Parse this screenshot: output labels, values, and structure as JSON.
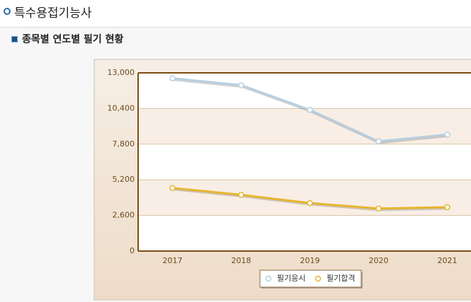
{
  "header": {
    "title": "특수용접기능사",
    "subtitle": "종목별 연도별 필기 현황"
  },
  "chart_data": {
    "type": "line",
    "categories": [
      "2017",
      "2018",
      "2019",
      "2020",
      "2021"
    ],
    "series": [
      {
        "name": "필기응시",
        "color": "#b7cfe2",
        "values": [
          12600,
          12100,
          10300,
          8000,
          8500
        ]
      },
      {
        "name": "필기합격",
        "color": "#e6b52c",
        "values": [
          4600,
          4100,
          3500,
          3100,
          3200
        ]
      }
    ],
    "ylim": [
      0,
      13000
    ],
    "yticks": [
      0,
      {
        "value": 2600,
        "label": "2,600"
      },
      {
        "value": 5200,
        "label": "5,200"
      },
      {
        "value": 7800,
        "label": "7,800"
      },
      {
        "value": 10400,
        "label": "10,400"
      },
      {
        "value": 13000,
        "label": "13,000"
      }
    ],
    "grid": true,
    "legend": "bottom"
  }
}
